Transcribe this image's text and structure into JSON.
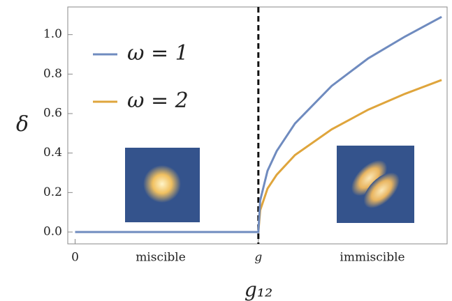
{
  "chart_data": {
    "type": "line",
    "x": [
      0,
      1,
      1.01,
      1.05,
      1.1,
      1.2,
      1.4,
      1.6,
      1.8,
      2.0
    ],
    "series": [
      {
        "name": "ω = 1",
        "color": "#6f8bbf",
        "values": [
          0,
          0,
          0.16,
          0.31,
          0.41,
          0.55,
          0.74,
          0.88,
          0.99,
          1.09
        ]
      },
      {
        "name": "ω = 2",
        "color": "#dfa53c",
        "values": [
          0,
          0,
          0.11,
          0.22,
          0.29,
          0.39,
          0.52,
          0.62,
          0.7,
          0.77
        ]
      }
    ],
    "xlabel": "g₁₂",
    "ylabel": "δ",
    "xlim": [
      -0.04,
      2.03
    ],
    "xticks": [
      0,
      {
        "value": 1,
        "label": "g"
      }
    ],
    "ylim": [
      -0.06,
      1.14
    ],
    "yticks": [
      {
        "value": 0,
        "label": "0.0"
      },
      0.2,
      0.4,
      0.6,
      0.8,
      {
        "value": 1,
        "label": "1.0"
      }
    ],
    "annotations": [
      "miscible",
      "immiscible"
    ]
  }
}
